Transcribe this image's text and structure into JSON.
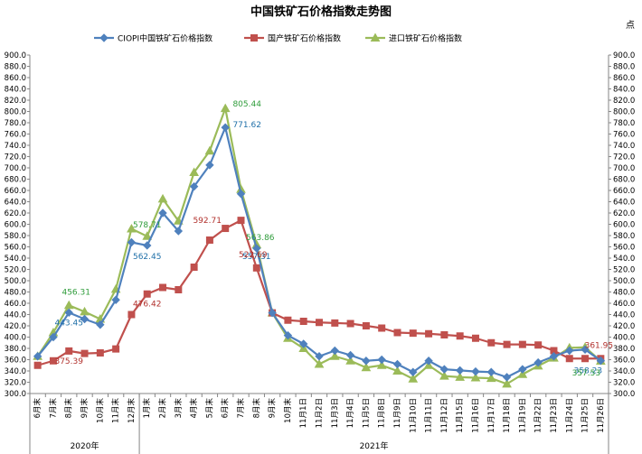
{
  "chart_data": {
    "type": "line",
    "title": "中国铁矿石价格指数走势图",
    "unit_label": "点",
    "ylim": [
      300,
      900
    ],
    "y_ticks": [
      "900.0",
      "880.0",
      "860.0",
      "840.0",
      "820.0",
      "800.0",
      "780.0",
      "760.0",
      "740.0",
      "720.0",
      "700.0",
      "680.0",
      "660.0",
      "640.0",
      "620.0",
      "600.0",
      "580.0",
      "560.0",
      "540.0",
      "520.0",
      "500.0",
      "480.0",
      "460.0",
      "440.0",
      "420.0",
      "400.0",
      "380.0",
      "360.0",
      "340.0",
      "320.0",
      "300.0"
    ],
    "grid": false,
    "legend_position": "top",
    "categories": [
      "6月末",
      "7月末",
      "8月末",
      "9月末",
      "10月末",
      "11月末",
      "12月末",
      "1月末",
      "2月末",
      "3月末",
      "4月末",
      "5月末",
      "6月末",
      "7月末",
      "8月末",
      "9月末",
      "10月末",
      "11月1日",
      "11月2日",
      "11月3日",
      "11月4日",
      "11月5日",
      "11月8日",
      "11月9日",
      "11月10日",
      "11月11日",
      "11月12日",
      "11月15日",
      "11月16日",
      "11月17日",
      "11月18日",
      "11月19日",
      "11月22日",
      "11月23日",
      "11月24日",
      "11月25日",
      "11月26日"
    ],
    "year_groups": [
      {
        "label": "2020年",
        "start": 0,
        "end": 6
      },
      {
        "label": "2021年",
        "start": 7,
        "end": 36
      }
    ],
    "series": [
      {
        "name": "CIOPI中国铁矿石价格指数",
        "color": "#4f81bd",
        "marker": "diamond",
        "values": [
          366,
          400,
          443.45,
          432,
          422,
          466,
          568,
          562.45,
          620,
          588,
          667,
          705,
          771.62,
          654,
          557.31,
          443,
          403,
          388,
          366,
          376,
          368,
          358,
          360,
          352,
          338,
          358,
          343,
          341,
          339,
          338,
          329,
          343,
          355,
          366,
          376,
          378,
          358.23
        ]
      },
      {
        "name": "国产铁矿石价格指数",
        "color": "#c0504d",
        "marker": "square",
        "values": [
          350,
          358,
          375.39,
          371,
          372,
          379,
          440,
          476.42,
          488,
          484,
          524,
          572,
          592.71,
          607,
          522.69,
          443,
          430,
          428,
          426,
          425,
          424,
          420,
          416,
          408,
          407,
          406,
          404,
          402,
          398,
          390,
          387,
          387,
          386,
          376,
          362,
          362,
          361.95
        ]
      },
      {
        "name": "进口铁矿石价格指数",
        "color": "#9bbb59",
        "marker": "triangle",
        "values": [
          366,
          408,
          456.31,
          445,
          432,
          485,
          592,
          578.71,
          645,
          606,
          692,
          730,
          805.44,
          662,
          563.86,
          443,
          398,
          380,
          352,
          366,
          358,
          346,
          350,
          340,
          326,
          350,
          331,
          329,
          328,
          327,
          317,
          334,
          349,
          363,
          381,
          382,
          357.53
        ]
      }
    ],
    "data_labels": [
      {
        "series": 0,
        "index": 2,
        "text": "443.45"
      },
      {
        "series": 0,
        "index": 7,
        "text": "562.45"
      },
      {
        "series": 0,
        "index": 12,
        "text": "771.62"
      },
      {
        "series": 0,
        "index": 14,
        "text": "557.31"
      },
      {
        "series": 0,
        "index": 36,
        "text": "358.23"
      },
      {
        "series": 1,
        "index": 2,
        "text": "375.39"
      },
      {
        "series": 1,
        "index": 7,
        "text": "476.42"
      },
      {
        "series": 1,
        "index": 12,
        "text": "592.71"
      },
      {
        "series": 1,
        "index": 14,
        "text": "522.69"
      },
      {
        "series": 1,
        "index": 36,
        "text": "361.95"
      },
      {
        "series": 2,
        "index": 2,
        "text": "456.31"
      },
      {
        "series": 2,
        "index": 7,
        "text": "578.71"
      },
      {
        "series": 2,
        "index": 12,
        "text": "805.44"
      },
      {
        "series": 2,
        "index": 14,
        "text": "563.86"
      },
      {
        "series": 2,
        "index": 36,
        "text": "357.53"
      }
    ]
  }
}
